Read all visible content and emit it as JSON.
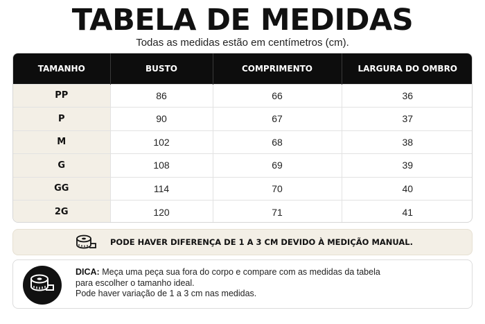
{
  "header": {
    "title": "TABELA DE MEDIDAS",
    "subtitle": "Todas as medidas estão em centímetros (cm)."
  },
  "table": {
    "columns": [
      "TAMANHO",
      "BUSTO",
      "COMPRIMENTO",
      "LARGURA DO OMBRO"
    ],
    "rows": [
      [
        "PP",
        "86",
        "66",
        "36"
      ],
      [
        "P",
        "90",
        "67",
        "37"
      ],
      [
        "M",
        "102",
        "68",
        "38"
      ],
      [
        "G",
        "108",
        "69",
        "39"
      ],
      [
        "GG",
        "114",
        "70",
        "40"
      ],
      [
        "2G",
        "120",
        "71",
        "41"
      ]
    ]
  },
  "notice": {
    "icon": "measuring-tape-icon",
    "text": "PODE HAVER DIFERENÇA DE 1 A 3 CM DEVIDO À MEDIÇÃO MANUAL."
  },
  "tip": {
    "icon": "measuring-tape-icon",
    "label": "DICA:",
    "line1": "Meça uma peça sua fora do corpo e compare com as medidas da tabela",
    "line2": "para escolher o tamanho ideal.",
    "line3": "Pode haver variação de 1 a 3 cm nas medidas."
  },
  "colors": {
    "header_bg": "#0d0d0d",
    "accent_beige": "#f3efe6"
  }
}
